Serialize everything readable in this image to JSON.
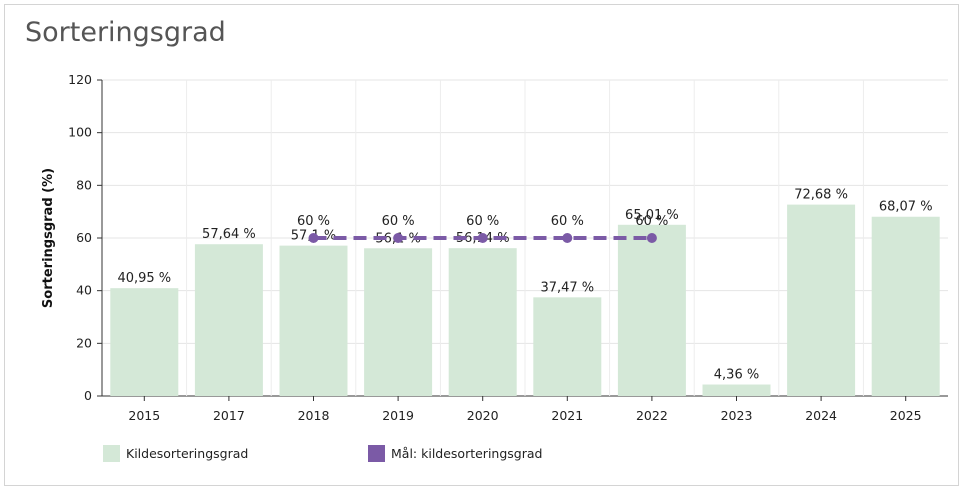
{
  "window": {
    "title": "Sorteringsgrad"
  },
  "chart_data": {
    "type": "bar",
    "title": "Sorteringsgrad",
    "xlabel": "",
    "ylabel": "Sorteringsgrad (%)",
    "ylim": [
      0,
      120
    ],
    "yticks": [
      0,
      20,
      40,
      60,
      80,
      100,
      120
    ],
    "grid": true,
    "legend_position": "bottom-left",
    "categories": [
      "2015",
      "2017",
      "2018",
      "2019",
      "2020",
      "2021",
      "2022",
      "2023",
      "2024",
      "2025"
    ],
    "series": [
      {
        "name": "Kildesorteringsgrad",
        "type": "bar",
        "color": "#d4e8d7",
        "values": [
          40.95,
          57.64,
          57.1,
          56.1,
          56.14,
          37.47,
          65.01,
          4.36,
          72.68,
          68.07
        ],
        "labels": [
          "40,95 %",
          "57,64 %",
          "57,1 %",
          "56,1 %",
          "56,14 %",
          "37,47 %",
          "65,01 %",
          "4,36 %",
          "72,68 %",
          "68,07 %"
        ]
      },
      {
        "name": "Mål: kildesorteringsgrad",
        "type": "line",
        "style": "dashed",
        "color": "#7b5aa6",
        "values": [
          null,
          null,
          60,
          60,
          60,
          60,
          60,
          null,
          null,
          null
        ],
        "labels": [
          null,
          null,
          "60 %",
          "60 %",
          "60 %",
          "60 %",
          "60 %",
          null,
          null,
          null
        ]
      }
    ]
  }
}
